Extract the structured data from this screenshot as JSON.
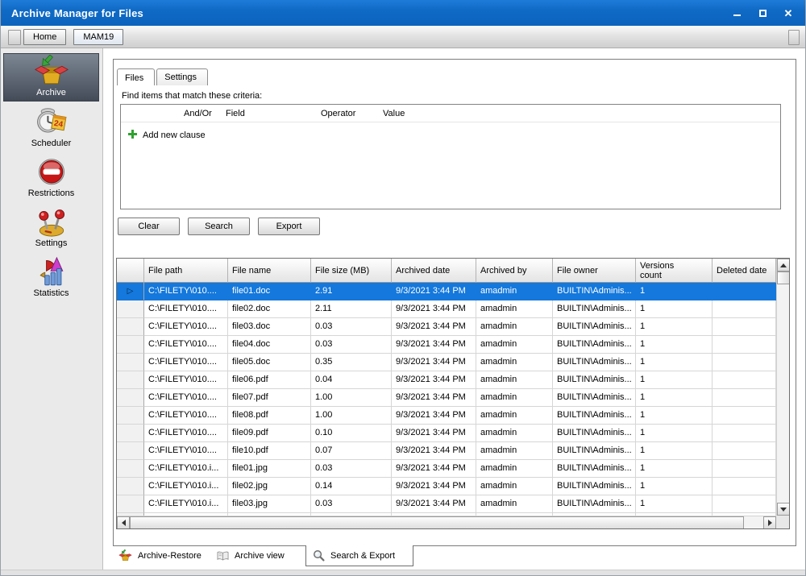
{
  "window": {
    "title": "Archive Manager for Files",
    "controls": [
      {
        "icon": "minimize-icon"
      },
      {
        "icon": "maximize-icon"
      },
      {
        "icon": "close-icon"
      }
    ]
  },
  "toolbar": {
    "buttons": [
      {
        "label": "Home",
        "active": false
      },
      {
        "label": "MAM19",
        "active": true
      }
    ]
  },
  "sidebar": {
    "items": [
      {
        "label": "Archive",
        "icon": "archive-box-icon",
        "selected": true
      },
      {
        "label": "Scheduler",
        "icon": "scheduler-clock-icon",
        "selected": false
      },
      {
        "label": "Restrictions",
        "icon": "no-entry-icon",
        "selected": false
      },
      {
        "label": "Settings",
        "icon": "levers-icon",
        "selected": false
      },
      {
        "label": "Statistics",
        "icon": "chart-icon",
        "selected": false
      }
    ]
  },
  "main": {
    "tabs": [
      {
        "label": "Files",
        "active": true
      },
      {
        "label": "Settings",
        "active": false
      }
    ],
    "criteria": {
      "label": "Find items that match these criteria:",
      "columns": [
        "And/Or",
        "Field",
        "Operator",
        "Value"
      ],
      "add_clause_label": "Add new clause",
      "add_icon": "green-plus-icon"
    },
    "actions": [
      {
        "label": "Clear"
      },
      {
        "label": "Search"
      },
      {
        "label": "Export"
      }
    ],
    "grid": {
      "columns": [
        "",
        "File path",
        "File name",
        "File size (MB)",
        "Archived date",
        "Archived by",
        "File owner",
        "Versions count",
        "Deleted date"
      ],
      "selected_row_index": 0,
      "rows": [
        [
          "C:\\FILETY\\010....",
          "file01.doc",
          "2.91",
          "9/3/2021 3:44 PM",
          "amadmin",
          "BUILTIN\\Adminis...",
          "1",
          ""
        ],
        [
          "C:\\FILETY\\010....",
          "file02.doc",
          "2.11",
          "9/3/2021 3:44 PM",
          "amadmin",
          "BUILTIN\\Adminis...",
          "1",
          ""
        ],
        [
          "C:\\FILETY\\010....",
          "file03.doc",
          "0.03",
          "9/3/2021 3:44 PM",
          "amadmin",
          "BUILTIN\\Adminis...",
          "1",
          ""
        ],
        [
          "C:\\FILETY\\010....",
          "file04.doc",
          "0.03",
          "9/3/2021 3:44 PM",
          "amadmin",
          "BUILTIN\\Adminis...",
          "1",
          ""
        ],
        [
          "C:\\FILETY\\010....",
          "file05.doc",
          "0.35",
          "9/3/2021 3:44 PM",
          "amadmin",
          "BUILTIN\\Adminis...",
          "1",
          ""
        ],
        [
          "C:\\FILETY\\010....",
          "file06.pdf",
          "0.04",
          "9/3/2021 3:44 PM",
          "amadmin",
          "BUILTIN\\Adminis...",
          "1",
          ""
        ],
        [
          "C:\\FILETY\\010....",
          "file07.pdf",
          "1.00",
          "9/3/2021 3:44 PM",
          "amadmin",
          "BUILTIN\\Adminis...",
          "1",
          ""
        ],
        [
          "C:\\FILETY\\010....",
          "file08.pdf",
          "1.00",
          "9/3/2021 3:44 PM",
          "amadmin",
          "BUILTIN\\Adminis...",
          "1",
          ""
        ],
        [
          "C:\\FILETY\\010....",
          "file09.pdf",
          "0.10",
          "9/3/2021 3:44 PM",
          "amadmin",
          "BUILTIN\\Adminis...",
          "1",
          ""
        ],
        [
          "C:\\FILETY\\010....",
          "file10.pdf",
          "0.07",
          "9/3/2021 3:44 PM",
          "amadmin",
          "BUILTIN\\Adminis...",
          "1",
          ""
        ],
        [
          "C:\\FILETY\\010.i...",
          "file01.jpg",
          "0.03",
          "9/3/2021 3:44 PM",
          "amadmin",
          "BUILTIN\\Adminis...",
          "1",
          ""
        ],
        [
          "C:\\FILETY\\010.i...",
          "file02.jpg",
          "0.14",
          "9/3/2021 3:44 PM",
          "amadmin",
          "BUILTIN\\Adminis...",
          "1",
          ""
        ],
        [
          "C:\\FILETY\\010.i...",
          "file03.jpg",
          "0.03",
          "9/3/2021 3:44 PM",
          "amadmin",
          "BUILTIN\\Adminis...",
          "1",
          ""
        ]
      ]
    },
    "bottom_tabs": [
      {
        "label": "Archive-Restore",
        "icon": "archive-box-icon",
        "active": false
      },
      {
        "label": "Archive view",
        "icon": "open-book-icon",
        "active": false
      },
      {
        "label": "Search & Export",
        "icon": "magnifier-icon",
        "active": true
      }
    ]
  },
  "colors": {
    "titlebar_blue": "#0f6ac6",
    "selection_blue": "#1478dc",
    "add_clause_green": "#2fa12f",
    "sidebar_selected_dark": "#434b57"
  }
}
